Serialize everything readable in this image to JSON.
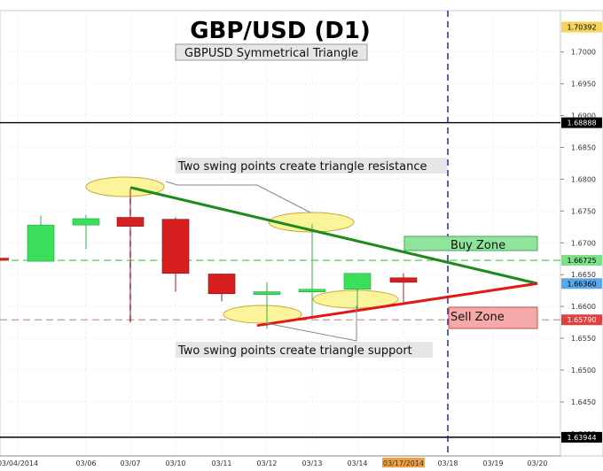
{
  "chart_data": {
    "type": "candlestick",
    "title": "GBP/USD (D1)",
    "subtitle": "GBPUSD Symmetrical Triangle",
    "x_labels": [
      "03/04/2014",
      "03/06",
      "03/07",
      "03/10",
      "03/11",
      "03/12",
      "03/13",
      "03/14",
      "03/17/2014",
      "03/18",
      "03/19",
      "03/20"
    ],
    "y_ticks": [
      "1.7000",
      "1.6950",
      "1.6900",
      "1.6850",
      "1.6800",
      "1.6750",
      "1.6700",
      "1.6650",
      "1.6600",
      "1.6550",
      "1.6500",
      "1.6450",
      "1.6400"
    ],
    "ylim": [
      1.6365,
      1.7065
    ],
    "price_badges": [
      {
        "label": "1.70392",
        "value": 1.70392,
        "bg": "#f5d35a",
        "fg": "#000000"
      },
      {
        "label": "1.68888",
        "value": 1.68888,
        "bg": "#000000",
        "fg": "#ffffff"
      },
      {
        "label": "1.66725",
        "value": 1.66725,
        "bg": "#7fe08a",
        "fg": "#000000"
      },
      {
        "label": "1.66360",
        "value": 1.6636,
        "bg": "#5aa8e6",
        "fg": "#000000"
      },
      {
        "label": "1.65790",
        "value": 1.6579,
        "bg": "#e04040",
        "fg": "#ffffff"
      },
      {
        "label": "1.63944",
        "value": 1.63944,
        "bg": "#000000",
        "fg": "#ffffff"
      }
    ],
    "candles": [
      {
        "x": 0,
        "open": 1.6675,
        "close": 1.6675,
        "high": 1.6675,
        "low": 1.6675
      },
      {
        "x": 1,
        "open": 1.6671,
        "close": 1.6728,
        "high": 1.6743,
        "low": 1.6671
      },
      {
        "x": 2,
        "open": 1.6728,
        "close": 1.6738,
        "high": 1.6744,
        "low": 1.669
      },
      {
        "x": 3,
        "open": 1.674,
        "close": 1.6726,
        "high": 1.6785,
        "low": 1.6575
      },
      {
        "x": 4,
        "open": 1.6737,
        "close": 1.6652,
        "high": 1.674,
        "low": 1.6623
      },
      {
        "x": 5,
        "open": 1.6651,
        "close": 1.662,
        "high": 1.6651,
        "low": 1.6608
      },
      {
        "x": 6,
        "open": 1.662,
        "close": 1.6623,
        "high": 1.6638,
        "low": 1.6565
      },
      {
        "x": 7,
        "open": 1.6623,
        "close": 1.6627,
        "high": 1.673,
        "low": 1.6584
      },
      {
        "x": 8,
        "open": 1.6627,
        "close": 1.6652,
        "high": 1.6652,
        "low": 1.6595
      },
      {
        "x": 9,
        "open": 1.6645,
        "close": 1.6638,
        "high": 1.6652,
        "low": 1.6607
      }
    ],
    "resistance_line": [
      {
        "x": 3,
        "y": 1.6787
      },
      {
        "x": 11,
        "y": 1.6636
      }
    ],
    "support_line": [
      {
        "x": 6,
        "y": 1.657
      },
      {
        "x": 11,
        "y": 1.6636
      }
    ],
    "horizontal_levels": [
      {
        "value": 1.68888,
        "style": "solid",
        "color": "#000000"
      },
      {
        "value": 1.63944,
        "style": "solid",
        "color": "#000000"
      },
      {
        "value": 1.66725,
        "style": "dashed",
        "color": "#3cc83c"
      },
      {
        "value": 1.6579,
        "style": "dashed",
        "color": "#c89a84"
      }
    ],
    "vertical_markers": [
      {
        "x": 3,
        "from": 1.6787,
        "to": 1.6575,
        "color": "#1a1aa8"
      },
      {
        "x": 9.85,
        "from": 1.7065,
        "to": 1.6365,
        "color": "#1a1aa8"
      }
    ],
    "zones": [
      {
        "label": "Buy Zone",
        "color": "#7fd98a"
      },
      {
        "label": "Sell Zone",
        "color": "#f0a0a0"
      }
    ],
    "annotations": [
      {
        "text": "Two swing points create triangle resistance"
      },
      {
        "text": "Two swing points create triangle support"
      }
    ]
  }
}
